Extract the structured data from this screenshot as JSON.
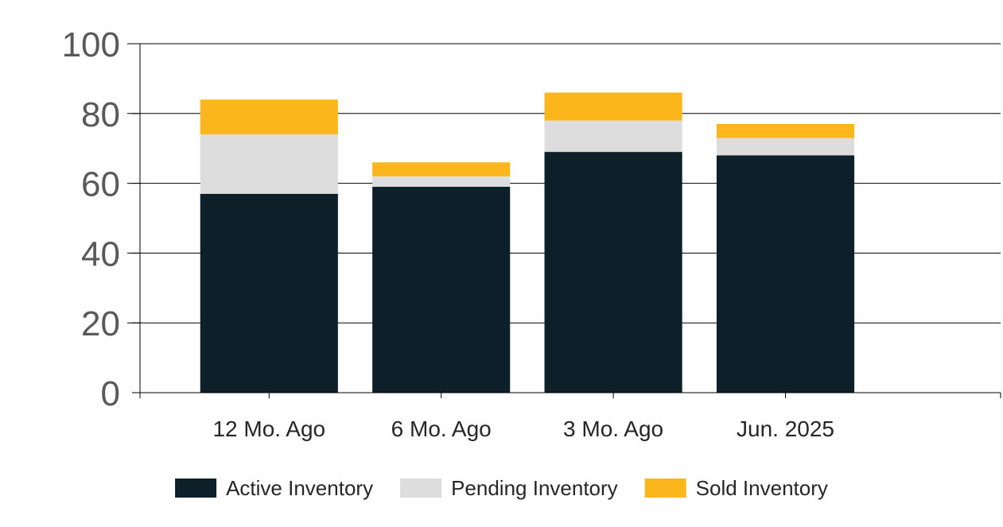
{
  "chart_data": {
    "type": "bar",
    "stacked": true,
    "categories": [
      "12 Mo. Ago",
      "6 Mo. Ago",
      "3 Mo. Ago",
      "Jun. 2025"
    ],
    "series": [
      {
        "name": "Active Inventory",
        "values": [
          57,
          59,
          69,
          68
        ],
        "color": "#0d1f29"
      },
      {
        "name": "Pending Inventory",
        "values": [
          17,
          3,
          9,
          5
        ],
        "color": "#dddddd"
      },
      {
        "name": "Sold Inventory",
        "values": [
          10,
          4,
          8,
          4
        ],
        "color": "#fbb61b"
      }
    ],
    "ylim": [
      0,
      100
    ],
    "yticks": [
      0,
      20,
      40,
      60,
      80,
      100
    ],
    "grid": true,
    "legend_position": "bottom"
  }
}
